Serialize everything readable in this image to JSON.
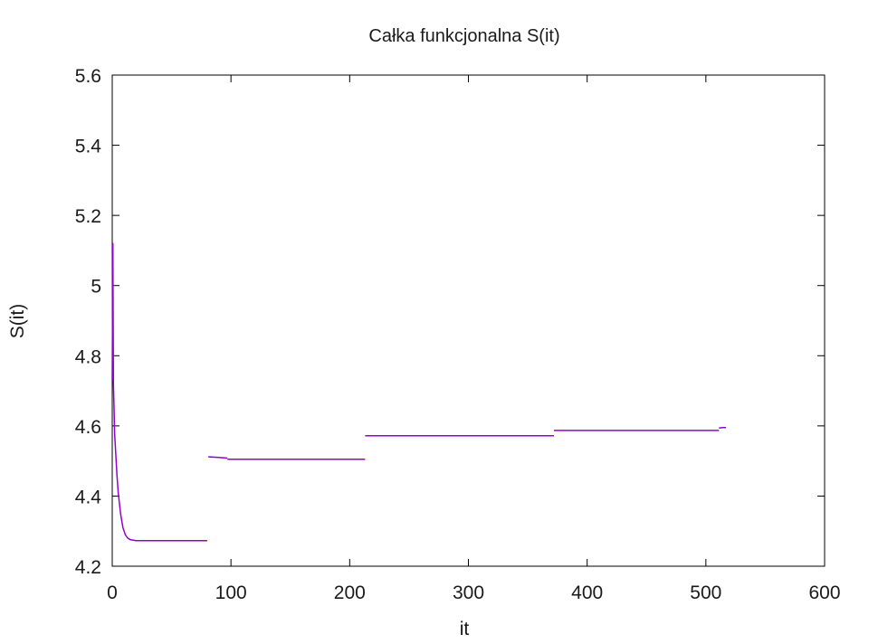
{
  "chart_data": {
    "type": "line",
    "title": "Całka funkcjonalna S(it)",
    "xlabel": "it",
    "ylabel": "S(it)",
    "xlim": [
      0,
      600
    ],
    "ylim": [
      4.2,
      5.6
    ],
    "xticks": [
      0,
      100,
      200,
      300,
      400,
      500,
      600
    ],
    "yticks": [
      4.2,
      4.4,
      4.6,
      4.8,
      5.0,
      5.2,
      5.4,
      5.6
    ],
    "xtick_labels": [
      "0",
      "100",
      "200",
      "300",
      "400",
      "500",
      "600"
    ],
    "ytick_labels": [
      "4.2",
      "4.4",
      "4.6",
      "4.8",
      "5",
      "5.2",
      "5.4",
      "5.6"
    ],
    "grid": false,
    "series_color": "#9400d3",
    "segments": [
      {
        "x": [
          0,
          0.5,
          1,
          1.5,
          2,
          3,
          4,
          5,
          6,
          7,
          8,
          9,
          10,
          11,
          12,
          13,
          14,
          15,
          16,
          18,
          20,
          25,
          30,
          40,
          50,
          60,
          70,
          80
        ],
        "y": [
          4.73,
          5.12,
          4.72,
          4.65,
          4.58,
          4.52,
          4.46,
          4.41,
          4.38,
          4.35,
          4.33,
          4.31,
          4.3,
          4.29,
          4.285,
          4.28,
          4.278,
          4.276,
          4.275,
          4.274,
          4.273,
          4.273,
          4.273,
          4.273,
          4.273,
          4.273,
          4.273,
          4.273
        ]
      },
      {
        "x": [
          81,
          85,
          90,
          95,
          97
        ],
        "y": [
          4.512,
          4.511,
          4.51,
          4.509,
          4.508
        ]
      },
      {
        "x": [
          97,
          120,
          150,
          180,
          213
        ],
        "y": [
          4.505,
          4.505,
          4.505,
          4.505,
          4.505
        ]
      },
      {
        "x": [
          213,
          250,
          300,
          350,
          372
        ],
        "y": [
          4.572,
          4.572,
          4.572,
          4.572,
          4.572
        ]
      },
      {
        "x": [
          372,
          400,
          450,
          500,
          511
        ],
        "y": [
          4.587,
          4.587,
          4.587,
          4.587,
          4.587
        ]
      },
      {
        "x": [
          511,
          514,
          517
        ],
        "y": [
          4.594,
          4.595,
          4.595
        ]
      }
    ]
  }
}
